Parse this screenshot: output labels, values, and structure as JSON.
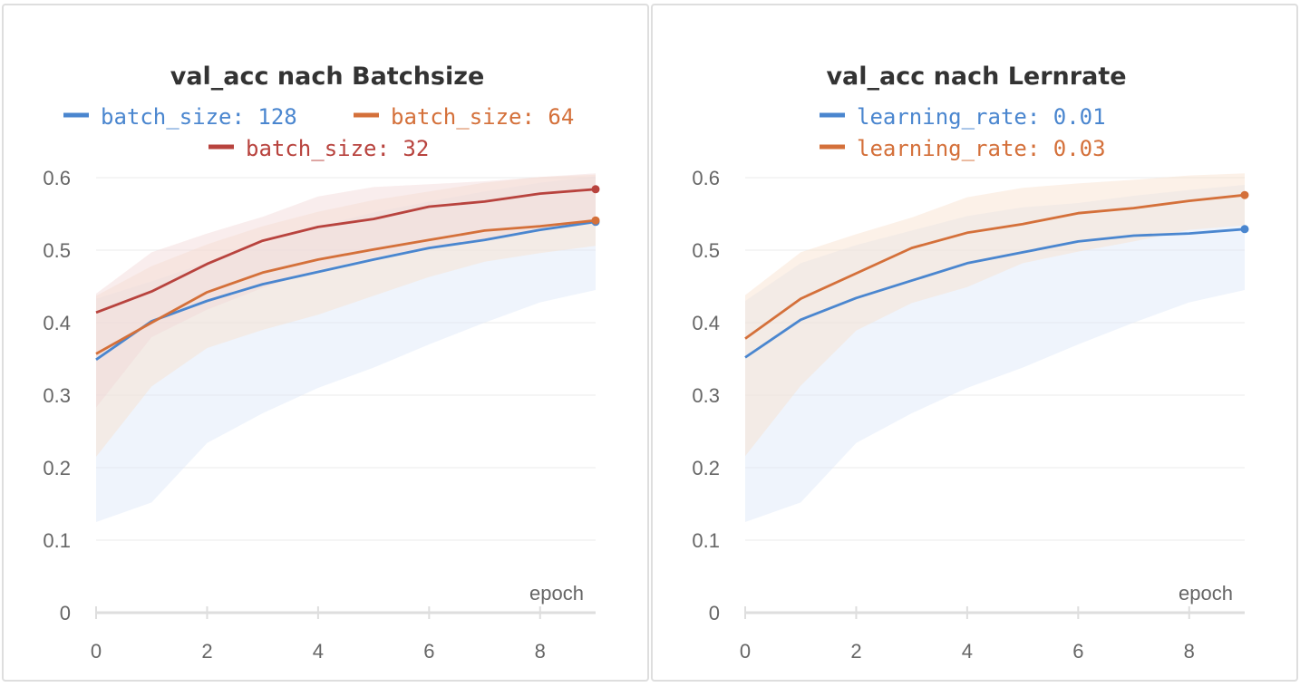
{
  "chart_data": [
    {
      "type": "line",
      "title": "val_acc nach Batchsize",
      "xlabel": "epoch",
      "ylabel": "",
      "xlim": [
        0,
        9
      ],
      "ylim": [
        0,
        0.6
      ],
      "x_ticks": [
        "0",
        "2",
        "4",
        "6",
        "8"
      ],
      "y_ticks": [
        "0",
        "0.1",
        "0.2",
        "0.3",
        "0.4",
        "0.5",
        "0.6"
      ],
      "grid": true,
      "legend_position": "top",
      "x": [
        0,
        1,
        2,
        3,
        4,
        5,
        6,
        7,
        8,
        9
      ],
      "series": [
        {
          "name": "batch_size: 128",
          "color": "#4a86cf",
          "band_color": "#dbe6f8",
          "values": [
            0.349,
            0.402,
            0.43,
            0.453,
            0.47,
            0.487,
            0.503,
            0.514,
            0.528,
            0.539
          ],
          "band_low": [
            0.125,
            0.152,
            0.234,
            0.275,
            0.31,
            0.338,
            0.37,
            0.4,
            0.428,
            0.445
          ],
          "band_high": [
            0.433,
            0.457,
            0.483,
            0.508,
            0.533,
            0.552,
            0.567,
            0.581,
            0.593,
            0.602
          ]
        },
        {
          "name": "batch_size: 64",
          "color": "#d4703a",
          "band_color": "#f9dfcd",
          "values": [
            0.357,
            0.4,
            0.442,
            0.469,
            0.487,
            0.501,
            0.514,
            0.527,
            0.533,
            0.541
          ],
          "band_low": [
            0.215,
            0.312,
            0.365,
            0.39,
            0.411,
            0.437,
            0.463,
            0.484,
            0.496,
            0.506
          ],
          "band_high": [
            0.437,
            0.478,
            0.508,
            0.533,
            0.553,
            0.569,
            0.581,
            0.593,
            0.601,
            0.604
          ]
        },
        {
          "name": "batch_size: 32",
          "color": "#b8433e",
          "band_color": "#f2d7d7",
          "values": [
            0.414,
            0.443,
            0.481,
            0.513,
            0.532,
            0.543,
            0.56,
            0.567,
            0.578,
            0.584
          ],
          "band_low": [
            0.283,
            0.38,
            0.418,
            0.448,
            0.473,
            0.49,
            0.505,
            0.514,
            0.528,
            0.537
          ],
          "band_high": [
            0.44,
            0.497,
            0.523,
            0.546,
            0.574,
            0.587,
            0.591,
            0.595,
            0.601,
            0.606
          ]
        }
      ]
    },
    {
      "type": "line",
      "title": "val_acc nach Lernrate",
      "xlabel": "epoch",
      "ylabel": "",
      "xlim": [
        0,
        9
      ],
      "ylim": [
        0,
        0.6
      ],
      "x_ticks": [
        "0",
        "2",
        "4",
        "6",
        "8"
      ],
      "y_ticks": [
        "0",
        "0.1",
        "0.2",
        "0.3",
        "0.4",
        "0.5",
        "0.6"
      ],
      "grid": true,
      "legend_position": "top",
      "x": [
        0,
        1,
        2,
        3,
        4,
        5,
        6,
        7,
        8,
        9
      ],
      "series": [
        {
          "name": "learning_rate: 0.01",
          "color": "#4a86cf",
          "band_color": "#dbe6f8",
          "values": [
            0.352,
            0.404,
            0.434,
            0.458,
            0.482,
            0.497,
            0.512,
            0.52,
            0.523,
            0.529
          ],
          "band_low": [
            0.125,
            0.152,
            0.234,
            0.275,
            0.31,
            0.338,
            0.37,
            0.4,
            0.428,
            0.445
          ],
          "band_high": [
            0.43,
            0.482,
            0.507,
            0.527,
            0.547,
            0.559,
            0.565,
            0.575,
            0.583,
            0.59
          ]
        },
        {
          "name": "learning_rate: 0.03",
          "color": "#d4703a",
          "band_color": "#f9dfcd",
          "values": [
            0.378,
            0.433,
            0.468,
            0.503,
            0.524,
            0.536,
            0.551,
            0.558,
            0.568,
            0.576
          ],
          "band_low": [
            0.216,
            0.313,
            0.389,
            0.427,
            0.449,
            0.482,
            0.498,
            0.512,
            0.528,
            0.534
          ],
          "band_high": [
            0.438,
            0.497,
            0.522,
            0.545,
            0.573,
            0.586,
            0.592,
            0.597,
            0.603,
            0.606
          ]
        }
      ]
    }
  ]
}
